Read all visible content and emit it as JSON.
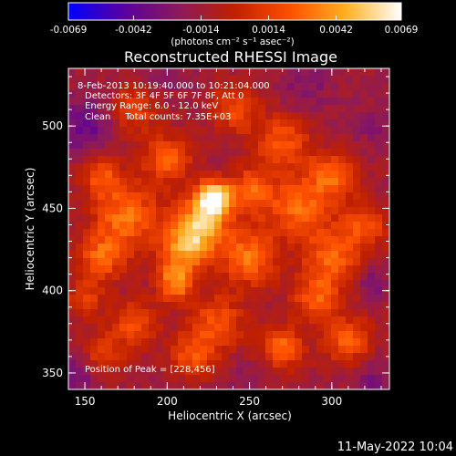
{
  "chart_data": {
    "type": "heatmap",
    "title": "Reconstructed RHESSI Image",
    "xlabel": "Heliocentric X (arcsec)",
    "ylabel": "Heliocentric Y (arcsec)",
    "xlim": [
      140,
      335
    ],
    "ylim": [
      340,
      535
    ],
    "xticks": [
      150,
      200,
      250,
      300
    ],
    "yticks": [
      350,
      400,
      450,
      500
    ],
    "colorbar": {
      "unit_label": "(photons cm⁻² s⁻¹ asec⁻²)",
      "range": [
        -0.0069,
        0.0069
      ],
      "tick_labels": [
        "-0.0069",
        "-0.0042",
        "-0.0014",
        "0.0014",
        "0.0042",
        "0.0069"
      ],
      "tick_values": [
        -0.0069,
        -0.0042,
        -0.0014,
        0.0014,
        0.0042,
        0.0069
      ],
      "colormap": [
        "#0000ff",
        "#5a00a0",
        "#8c1a5a",
        "#c02000",
        "#ff5000",
        "#ffb020",
        "#ffffff"
      ]
    },
    "peak": {
      "x": 228,
      "y": 456
    },
    "annotations": {
      "time_range": "8-Feb-2013 10:19:40.000 to 10:21:04.000",
      "detectors": "Detectors: 3F 4F 5F 6F 7F 8F, Att 0",
      "energy": "Energy Range: 6.0 - 12.0 keV",
      "clean": "Clean     Total counts: 7.35E+03",
      "peak_text": "Position of Peak = [228,456]"
    },
    "timestamp": "11-May-2022 10:04",
    "blobs": [
      {
        "x": 228,
        "y": 456,
        "v": 0.0069,
        "r": 7
      },
      {
        "x": 220,
        "y": 440,
        "v": 0.0045,
        "r": 12
      },
      {
        "x": 175,
        "y": 445,
        "v": 0.003,
        "r": 14
      },
      {
        "x": 280,
        "y": 450,
        "v": 0.0028,
        "r": 13
      },
      {
        "x": 300,
        "y": 470,
        "v": 0.0026,
        "r": 10
      },
      {
        "x": 270,
        "y": 490,
        "v": 0.0022,
        "r": 12
      },
      {
        "x": 200,
        "y": 480,
        "v": 0.0025,
        "r": 10
      },
      {
        "x": 160,
        "y": 420,
        "v": 0.0024,
        "r": 10
      },
      {
        "x": 205,
        "y": 405,
        "v": 0.0035,
        "r": 8
      },
      {
        "x": 250,
        "y": 420,
        "v": 0.003,
        "r": 12
      },
      {
        "x": 300,
        "y": 420,
        "v": 0.0025,
        "r": 12
      },
      {
        "x": 320,
        "y": 440,
        "v": 0.002,
        "r": 10
      },
      {
        "x": 230,
        "y": 380,
        "v": 0.0022,
        "r": 12
      },
      {
        "x": 180,
        "y": 380,
        "v": 0.002,
        "r": 10
      },
      {
        "x": 270,
        "y": 365,
        "v": 0.0028,
        "r": 9
      },
      {
        "x": 310,
        "y": 370,
        "v": 0.0024,
        "r": 10
      },
      {
        "x": 215,
        "y": 360,
        "v": 0.002,
        "r": 9
      },
      {
        "x": 160,
        "y": 360,
        "v": 0.0015,
        "r": 9
      },
      {
        "x": 240,
        "y": 510,
        "v": 0.0018,
        "r": 10
      },
      {
        "x": 180,
        "y": 510,
        "v": 0.0016,
        "r": 10
      },
      {
        "x": 160,
        "y": 470,
        "v": 0.002,
        "r": 9
      },
      {
        "x": 250,
        "y": 460,
        "v": 0.0025,
        "r": 10
      },
      {
        "x": 210,
        "y": 425,
        "v": 0.0028,
        "r": 10
      },
      {
        "x": 290,
        "y": 395,
        "v": 0.0022,
        "r": 10
      },
      {
        "x": 150,
        "y": 395,
        "v": 0.0012,
        "r": 8
      },
      {
        "x": 325,
        "y": 500,
        "v": -0.001,
        "r": 10
      },
      {
        "x": 325,
        "y": 405,
        "v": -0.002,
        "r": 6
      },
      {
        "x": 150,
        "y": 500,
        "v": -0.0025,
        "r": 12
      },
      {
        "x": 145,
        "y": 350,
        "v": -0.002,
        "r": 10
      },
      {
        "x": 250,
        "y": 345,
        "v": -0.0008,
        "r": 10
      },
      {
        "x": 325,
        "y": 345,
        "v": -0.0015,
        "r": 10
      },
      {
        "x": 285,
        "y": 525,
        "v": -0.0012,
        "r": 12
      },
      {
        "x": 195,
        "y": 530,
        "v": -0.001,
        "r": 10
      }
    ]
  }
}
